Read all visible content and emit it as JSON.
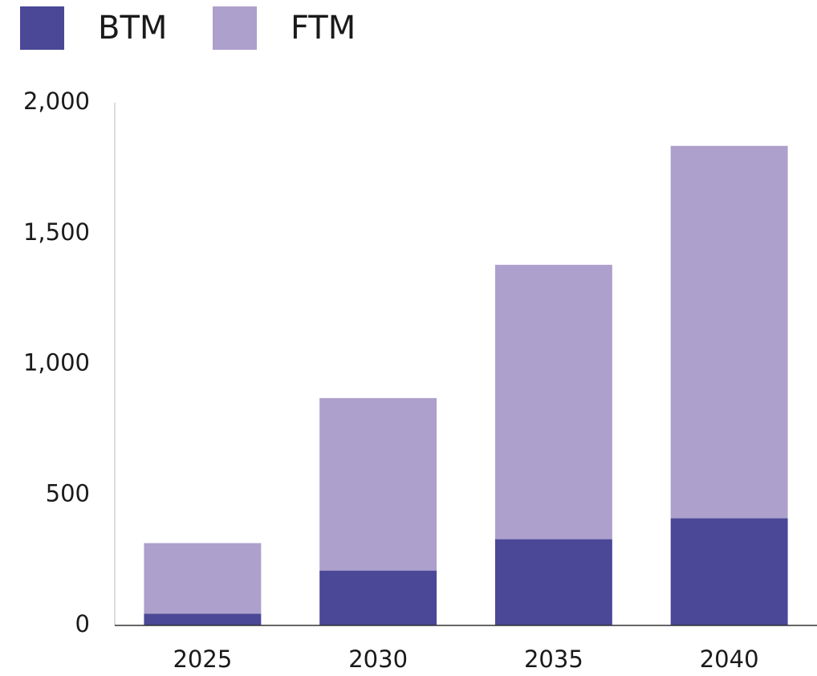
{
  "chart_data": {
    "type": "stacked_bar",
    "categories": [
      "2025",
      "2030",
      "2035",
      "2040"
    ],
    "series": [
      {
        "name": "BTM",
        "color": "#4a4897",
        "values": [
          45,
          210,
          330,
          410
        ]
      },
      {
        "name": "FTM",
        "color": "#ada0cc",
        "values": [
          270,
          660,
          1050,
          1425
        ]
      }
    ],
    "ylim": [
      0,
      2000
    ],
    "yticks": [
      0,
      500,
      {
        "value": 1000,
        "label": "1,000"
      },
      {
        "value": 1500,
        "label": "1,500"
      },
      {
        "value": 2000,
        "label": "2,000"
      }
    ],
    "grid": false,
    "legend": "top-left"
  }
}
